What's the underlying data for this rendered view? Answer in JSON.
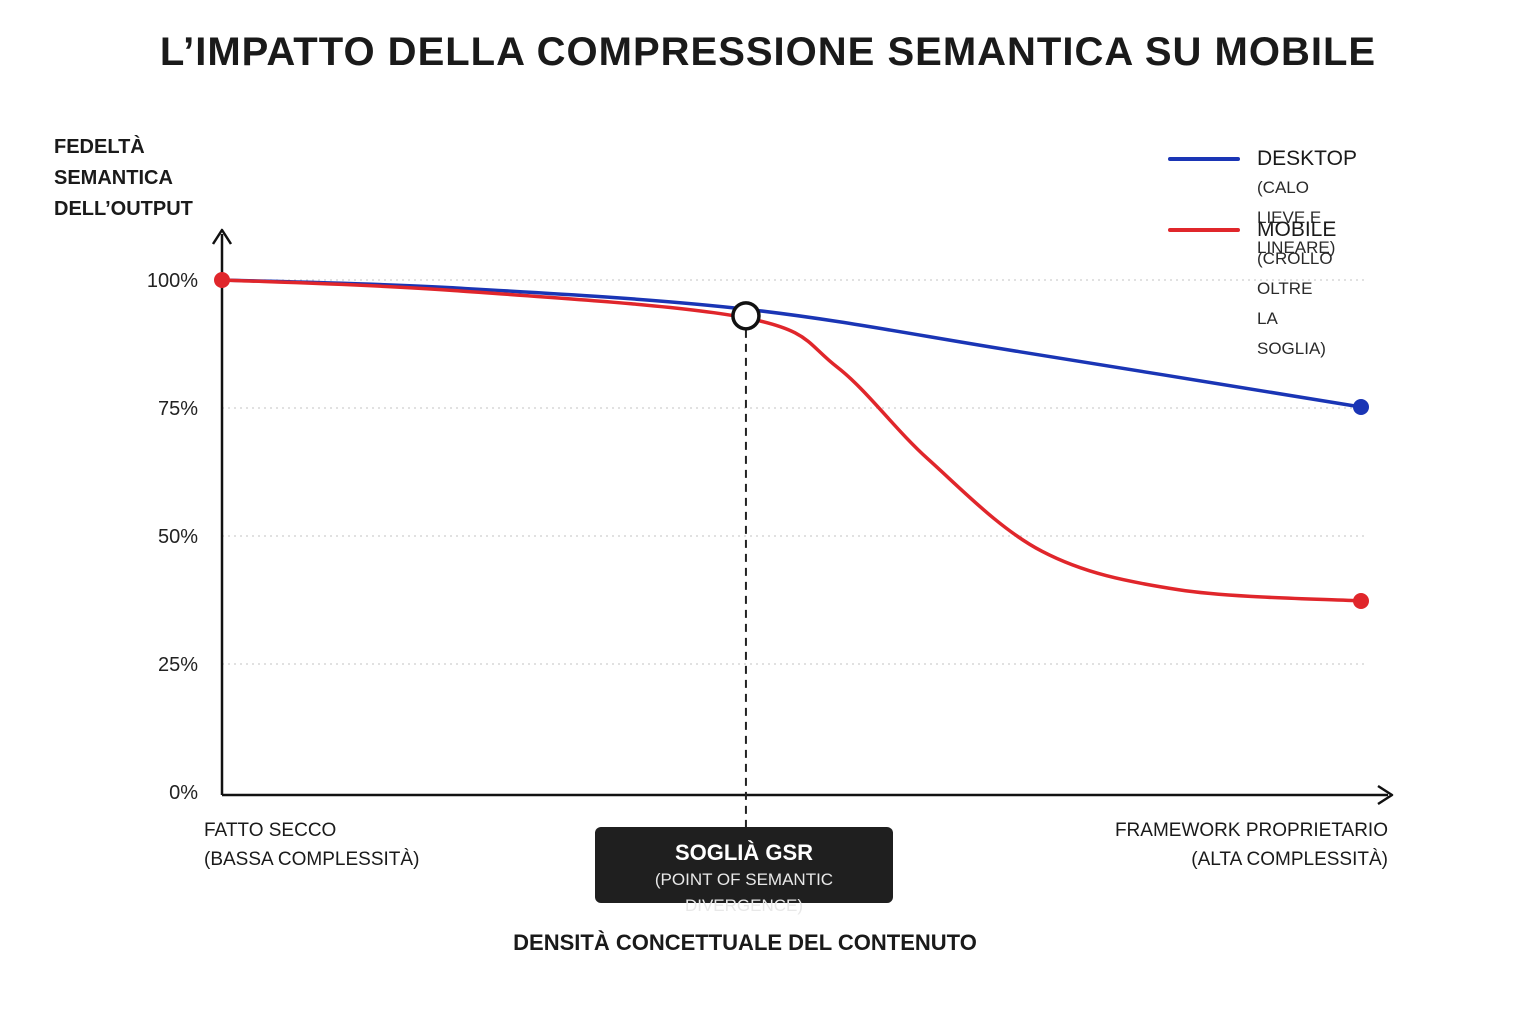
{
  "title": "L’IMPATTO DELLA COMPRESSIONE SEMANTICA SU MOBILE",
  "chart_data": {
    "type": "line",
    "title": "L’IMPATTO DELLA COMPRESSIONE SEMANTICA SU MOBILE",
    "ylabel_lines": [
      "FEDELTÀ",
      "SEMANTICA",
      "DELL’OUTPUT"
    ],
    "xlabel": "DENSITÀ CONCETTUALE DEL CONTENUTO",
    "x_range": [
      0,
      1
    ],
    "ylim": [
      0,
      100
    ],
    "y_ticks": [
      0,
      25,
      50,
      75,
      100
    ],
    "y_tick_labels": [
      "0%",
      "25%",
      "50%",
      "75%",
      "100%"
    ],
    "grid": "dotted horizontal",
    "x_categories": [
      {
        "x": 0,
        "line1": "FATTO SECCO",
        "line2": "(BASSA COMPLESSITÀ)"
      },
      {
        "x": 1,
        "line1": "FRAMEWORK PROPRIETARIO",
        "line2": "(ALTA COMPLESSITÀ)"
      }
    ],
    "series": [
      {
        "name": "DESKTOP",
        "description": "(CALO LIEVE E LINEARE)",
        "color": "#1a35b5",
        "points": [
          [
            0,
            100
          ],
          [
            0.2,
            98.5
          ],
          [
            0.46,
            94.3
          ],
          [
            0.7,
            86
          ],
          [
            1,
            75.2
          ]
        ]
      },
      {
        "name": "MOBILE",
        "description": "(CROLLO OLTRE LA SOGLIA)",
        "color": "#e0262b",
        "points": [
          [
            0,
            100
          ],
          [
            0.2,
            98
          ],
          [
            0.46,
            92.6
          ],
          [
            0.54,
            83
          ],
          [
            0.62,
            65
          ],
          [
            0.72,
            47
          ],
          [
            0.84,
            39.5
          ],
          [
            1,
            37.3
          ]
        ]
      }
    ],
    "annotation": {
      "x": 0.46,
      "y": 93,
      "title": "SOGLIÀ GSR",
      "subtitle": "(POINT OF SEMANTIC DIVERGENCE)"
    },
    "legend_position": "top-right"
  }
}
